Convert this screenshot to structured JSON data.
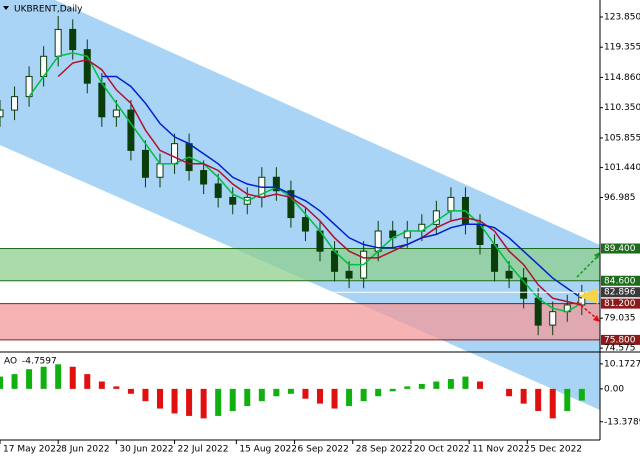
{
  "chart_data": [
    {
      "type": "candlestick",
      "title": "UKBRENT,Daily",
      "x": [
        0,
        4,
        8,
        12,
        16,
        20,
        24,
        28,
        32,
        36,
        40,
        44,
        48,
        52,
        56,
        60,
        64,
        68,
        72,
        76,
        80,
        84,
        88,
        92,
        96,
        100,
        104,
        108,
        112,
        116,
        120,
        124,
        128,
        132,
        136,
        140,
        144,
        148,
        152,
        156,
        160
      ],
      "open": [
        109,
        110,
        112,
        115,
        118,
        122,
        119,
        114,
        109,
        110,
        104,
        100,
        102,
        105,
        101,
        99,
        97,
        96,
        97,
        100,
        98,
        94,
        92,
        89,
        86,
        85,
        89,
        92,
        91,
        92,
        93,
        95,
        97,
        93,
        90,
        86,
        85,
        82,
        78,
        80,
        81
      ],
      "high": [
        111.5,
        113.5,
        116.5,
        119.5,
        124,
        123.5,
        120.5,
        115.5,
        111.5,
        111.5,
        105.5,
        103.5,
        106.5,
        106.5,
        102.5,
        100.5,
        98.5,
        98.5,
        101.5,
        101.5,
        99.5,
        95.5,
        93.5,
        90.5,
        87.5,
        90.5,
        93.5,
        93.5,
        93.5,
        94.5,
        96.5,
        98.5,
        98.5,
        94.5,
        91.5,
        87.5,
        86.5,
        83.5,
        81.5,
        82.5,
        84
      ],
      "low": [
        107.5,
        108.5,
        110.5,
        113.5,
        116.5,
        117.5,
        112.5,
        107.5,
        107.5,
        102.5,
        98.5,
        98.5,
        100.5,
        99.5,
        97.5,
        95.5,
        94.5,
        94.5,
        95.5,
        96.5,
        92.5,
        90.5,
        87.5,
        84.5,
        83.5,
        83.5,
        87.5,
        89.5,
        89.5,
        90.5,
        91.5,
        93.5,
        91.5,
        88.5,
        84.5,
        83.5,
        80.5,
        76.5,
        76.5,
        78.5,
        79.5
      ],
      "close": [
        110,
        112,
        115,
        118,
        122,
        119,
        114,
        109,
        110,
        104,
        100,
        102,
        105,
        101,
        99,
        97,
        96,
        97,
        100,
        98,
        94,
        92,
        89,
        86,
        85,
        89,
        92,
        91,
        92,
        93,
        95,
        97,
        93,
        90,
        86,
        85,
        82,
        78,
        80,
        81,
        82.9
      ],
      "candle_color": "#0b3d0b",
      "series": [
        {
          "color": "#00c040",
          "values": [
            null,
            null,
            112,
            115,
            118,
            118.5,
            118,
            114,
            111,
            108,
            105,
            102,
            102,
            103,
            102,
            100,
            97.5,
            96.5,
            97.5,
            98.5,
            97,
            94.5,
            92,
            89,
            87,
            87,
            89,
            91,
            92,
            92,
            93.5,
            95,
            95,
            93,
            90,
            87,
            84.5,
            82,
            80.5,
            80,
            81.3
          ]
        },
        {
          "color": "#b01030",
          "values": [
            null,
            null,
            null,
            null,
            115,
            117,
            117.5,
            116,
            113,
            111,
            107,
            104,
            103,
            102,
            102,
            101,
            99,
            97.5,
            97,
            97.5,
            97,
            95.5,
            93.5,
            91,
            89,
            88,
            88,
            89,
            90,
            91,
            92.5,
            93.5,
            94,
            93.5,
            92,
            89,
            87,
            84,
            82,
            81.5,
            81
          ]
        },
        {
          "color": "#0020d0",
          "values": [
            null,
            null,
            null,
            null,
            null,
            null,
            null,
            115,
            115,
            113.5,
            111,
            108,
            106,
            105,
            103.5,
            102,
            100,
            99,
            98.5,
            98.5,
            97.5,
            96.5,
            95,
            93,
            91,
            90,
            89.5,
            89.5,
            90,
            91,
            91.5,
            92.5,
            93,
            93,
            92.5,
            91,
            89,
            87,
            85,
            83.5,
            82
          ]
        }
      ],
      "xlim": [
        0,
        165
      ],
      "xticks": [
        {
          "value": 0,
          "label": "17 May 2022"
        },
        {
          "value": 16,
          "label": "8 Jun 2022"
        },
        {
          "value": 32,
          "label": "30 Jun 2022"
        },
        {
          "value": 48,
          "label": "22 Jul 2022"
        },
        {
          "value": 65,
          "label": "15 Aug 2022"
        },
        {
          "value": 81,
          "label": "6 Sep 2022"
        },
        {
          "value": 97,
          "label": "28 Sep 2022"
        },
        {
          "value": 113,
          "label": "20 Oct 2022"
        },
        {
          "value": 129,
          "label": "11 Nov 2022"
        },
        {
          "value": 145,
          "label": "5 Dec 2022"
        }
      ],
      "ylim": [
        74.0,
        126.08
      ],
      "yticks": [
        {
          "value": 123.85,
          "label": "123.850"
        },
        {
          "value": 119.355,
          "label": "119.355"
        },
        {
          "value": 114.86,
          "label": "114.860"
        },
        {
          "value": 110.35,
          "label": "110.350"
        },
        {
          "value": 105.855,
          "label": "105.855"
        },
        {
          "value": 101.44,
          "label": "101.440"
        },
        {
          "value": 96.985,
          "label": "96.985"
        },
        {
          "value": 79.035,
          "label": "79.035"
        },
        {
          "value": 74.575,
          "label": "74.575"
        }
      ],
      "zones": [
        {
          "lo": {
            "value": 84.6,
            "label": "84.600"
          },
          "hi": {
            "value": 89.4,
            "label": "89.400"
          },
          "color": "#8fcf8f",
          "label_color": "#1e6b1e"
        },
        {
          "lo": {
            "value": 75.8,
            "label": "75.800"
          },
          "hi": {
            "value": 81.2,
            "label": "81.200"
          },
          "color": "#f39a9a",
          "label_color": "#8b1a1a"
        }
      ],
      "last_price": {
        "value": 82.896,
        "label": "82.896"
      }
    },
    {
      "type": "histogram",
      "title": "AO",
      "current": -4.7597,
      "x": [
        0,
        4,
        8,
        12,
        16,
        20,
        24,
        28,
        32,
        36,
        40,
        44,
        48,
        52,
        56,
        60,
        64,
        68,
        72,
        76,
        80,
        84,
        88,
        92,
        96,
        100,
        104,
        108,
        112,
        116,
        120,
        124,
        128,
        132,
        136,
        140,
        144,
        148,
        152,
        156,
        160
      ],
      "values": [
        5,
        6,
        8,
        9,
        10,
        9,
        6,
        3,
        1,
        -2,
        -5,
        -8,
        -10,
        -11,
        -12,
        -11,
        -9,
        -7,
        -5,
        -3,
        -2,
        -4,
        -6,
        -8,
        -7,
        -5,
        -3,
        -1,
        1,
        2,
        3,
        4,
        5,
        3,
        0,
        -3,
        -6,
        -9,
        -12,
        -9,
        -4.76
      ],
      "up_color": "#10b010",
      "down_color": "#e01010",
      "ylim": [
        -20.8,
        15
      ],
      "yticks": [
        10.1727,
        {
          "value": 0,
          "label": "0.00"
        },
        -13.3789
      ]
    }
  ]
}
